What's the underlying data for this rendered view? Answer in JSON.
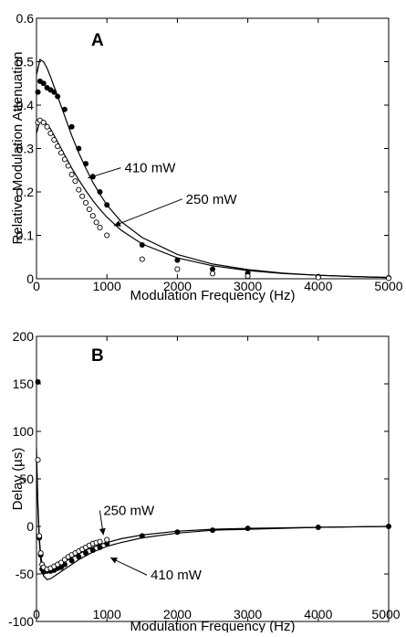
{
  "chart_data": [
    {
      "type": "scatter",
      "panel_label": "A",
      "xlabel": "Modulation Frequency (Hz)",
      "ylabel": "Relative Modulation Attenuation",
      "xlim": [
        0,
        5000
      ],
      "ylim": [
        0,
        0.6
      ],
      "xticks": [
        0,
        1000,
        2000,
        3000,
        4000,
        5000
      ],
      "yticks": [
        0,
        0.1,
        0.2,
        0.3,
        0.4,
        0.5,
        0.6
      ],
      "xtick_labels": [
        "0",
        "1000",
        "2000",
        "3000",
        "4000",
        "5000"
      ],
      "ytick_labels": [
        "0",
        "0.1",
        "0.2",
        "0.3",
        "0.4",
        "0.5",
        "0.6"
      ],
      "grid": false,
      "series": [
        {
          "marker": "filled-circle",
          "x": [
            20,
            50,
            100,
            150,
            200,
            250,
            300,
            400,
            500,
            600,
            700,
            800,
            900,
            1000,
            1500,
            2000,
            2500,
            3000,
            4000,
            5000
          ],
          "y": [
            0.43,
            0.455,
            0.45,
            0.44,
            0.435,
            0.43,
            0.42,
            0.39,
            0.35,
            0.3,
            0.265,
            0.235,
            0.2,
            0.17,
            0.078,
            0.043,
            0.022,
            0.013,
            0.005,
            0.002
          ]
        },
        {
          "marker": "open-circle",
          "x": [
            20,
            50,
            100,
            150,
            200,
            250,
            300,
            350,
            400,
            450,
            500,
            550,
            600,
            650,
            700,
            750,
            800,
            850,
            900,
            1000,
            1500,
            2000,
            2500,
            3000,
            4000,
            5000
          ],
          "y": [
            0.36,
            0.365,
            0.36,
            0.35,
            0.335,
            0.32,
            0.305,
            0.29,
            0.275,
            0.26,
            0.24,
            0.225,
            0.205,
            0.19,
            0.175,
            0.16,
            0.145,
            0.13,
            0.118,
            0.1,
            0.045,
            0.022,
            0.012,
            0.006,
            0.003,
            0.001
          ]
        },
        {
          "marker": "line",
          "x": [
            0,
            50,
            100,
            150,
            200,
            300,
            400,
            500,
            600,
            700,
            800,
            900,
            1000,
            1200,
            1500,
            2000,
            2500,
            3000,
            3500,
            4000,
            4500,
            5000
          ],
          "y": [
            0.47,
            0.505,
            0.5,
            0.485,
            0.465,
            0.42,
            0.375,
            0.33,
            0.29,
            0.255,
            0.222,
            0.195,
            0.17,
            0.132,
            0.095,
            0.056,
            0.034,
            0.021,
            0.013,
            0.008,
            0.005,
            0.003
          ]
        },
        {
          "marker": "line",
          "x": [
            0,
            50,
            100,
            150,
            200,
            300,
            400,
            500,
            600,
            700,
            800,
            900,
            1000,
            1200,
            1500,
            2000,
            2500,
            3000,
            3500,
            4000,
            4500,
            5000
          ],
          "y": [
            0.335,
            0.365,
            0.365,
            0.355,
            0.345,
            0.315,
            0.285,
            0.255,
            0.228,
            0.203,
            0.18,
            0.16,
            0.142,
            0.112,
            0.08,
            0.048,
            0.03,
            0.019,
            0.012,
            0.008,
            0.005,
            0.003
          ]
        }
      ],
      "annotations": [
        {
          "text": "410 mW",
          "x": 730,
          "y": 0.232,
          "text_x": 1250,
          "text_y": 0.245
        },
        {
          "text": "250 mW",
          "x": 1100,
          "y": 0.122,
          "text_x": 2120,
          "text_y": 0.173
        }
      ]
    },
    {
      "type": "scatter",
      "panel_label": "B",
      "xlabel": "Modulation Frequency (Hz)",
      "ylabel": "Delay (µs)",
      "xlim": [
        0,
        5000
      ],
      "ylim": [
        -100,
        200
      ],
      "xticks": [
        0,
        1000,
        2000,
        3000,
        4000,
        5000
      ],
      "yticks": [
        -100,
        -50,
        0,
        50,
        100,
        150,
        200
      ],
      "xtick_labels": [
        "0",
        "1000",
        "2000",
        "3000",
        "4000",
        "5000"
      ],
      "ytick_labels": [
        "-100",
        "-50",
        "0",
        "50",
        "100",
        "150",
        "200"
      ],
      "grid": false,
      "series": [
        {
          "marker": "filled-circle",
          "x": [
            20,
            40,
            60,
            80,
            100,
            150,
            200,
            250,
            300,
            350,
            400,
            500,
            600,
            700,
            800,
            900,
            1000,
            1500,
            2000,
            2500,
            3000,
            4000,
            5000
          ],
          "y": [
            152,
            -12,
            -30,
            -45,
            -48,
            -47,
            -47,
            -46,
            -44,
            -43,
            -40,
            -36,
            -32,
            -28,
            -25,
            -22,
            -18,
            -10,
            -6,
            -4,
            -2,
            -1,
            0
          ]
        },
        {
          "marker": "open-circle",
          "x": [
            20,
            40,
            60,
            80,
            100,
            150,
            200,
            250,
            300,
            350,
            400,
            450,
            500,
            550,
            600,
            650,
            700,
            750,
            800,
            850,
            900,
            1000
          ],
          "y": [
            70,
            -10,
            -28,
            -40,
            -43,
            -45,
            -44,
            -42,
            -40,
            -38,
            -35,
            -32,
            -30,
            -28,
            -26,
            -24,
            -22,
            -20,
            -18,
            -17,
            -16,
            -14
          ]
        },
        {
          "marker": "line",
          "x": [
            0,
            20,
            40,
            60,
            80,
            100,
            150,
            200,
            300,
            400,
            500,
            600,
            700,
            800,
            900,
            1000,
            1200,
            1500,
            2000,
            2500,
            3000,
            4000,
            5000
          ],
          "y": [
            70,
            20,
            -15,
            -35,
            -46,
            -52,
            -56,
            -55,
            -50,
            -45,
            -40,
            -35,
            -31,
            -27,
            -24,
            -21,
            -17,
            -12,
            -7,
            -4,
            -3,
            -1,
            0
          ]
        },
        {
          "marker": "line",
          "x": [
            0,
            20,
            40,
            60,
            80,
            100,
            150,
            200,
            300,
            400,
            500,
            600,
            700,
            800,
            900,
            1000,
            1200,
            1500,
            2000,
            2500,
            3000,
            4000,
            5000
          ],
          "y": [
            82,
            25,
            -12,
            -30,
            -40,
            -44,
            -47,
            -46,
            -42,
            -37,
            -33,
            -29,
            -25,
            -22,
            -19,
            -17,
            -13,
            -9,
            -5,
            -3,
            -2,
            -1,
            0
          ]
        }
      ],
      "annotations": [
        {
          "text": "250 mW",
          "x": 950,
          "y": -9,
          "text_x": 950,
          "text_y": 12
        },
        {
          "text": "410 mW",
          "x": 1050,
          "y": -33,
          "text_x": 1620,
          "text_y": -56
        }
      ]
    }
  ]
}
